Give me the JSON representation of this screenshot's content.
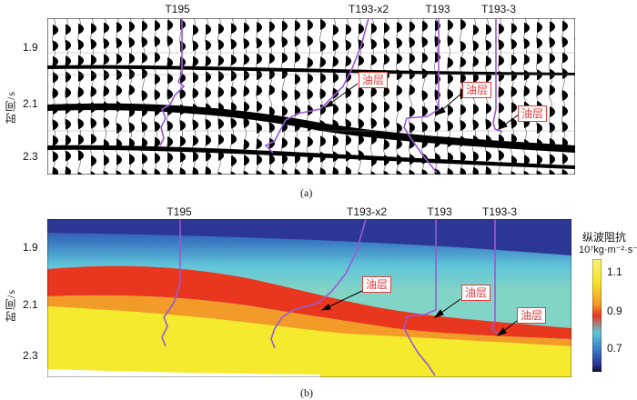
{
  "panel_a": {
    "wells": [
      "T195",
      "T193-x2",
      "T193",
      "T193-3"
    ],
    "y_ticks": [
      "1.9",
      "2.1",
      "2.3"
    ],
    "y_axis_label": "时间/s",
    "oil_labels": [
      "油层",
      "油层",
      "油层"
    ],
    "caption": "(a)"
  },
  "panel_b": {
    "wells": [
      "T195",
      "T193-x2",
      "T193",
      "T193-3"
    ],
    "y_ticks": [
      "1.9",
      "2.1",
      "2.3"
    ],
    "y_axis_label": "时间/s",
    "oil_labels": [
      "油层",
      "油层",
      "油层"
    ],
    "caption": "(b)",
    "colorbar": {
      "title": "纵波阻抗",
      "unit": "10⁷kg·m⁻²·s⁻¹",
      "ticks": [
        "1.1",
        "0.9",
        "0.7"
      ]
    }
  },
  "colors": {
    "well_log": "#9b59d0",
    "oil_label": "#e23b3b",
    "arrow": "#000000"
  }
}
